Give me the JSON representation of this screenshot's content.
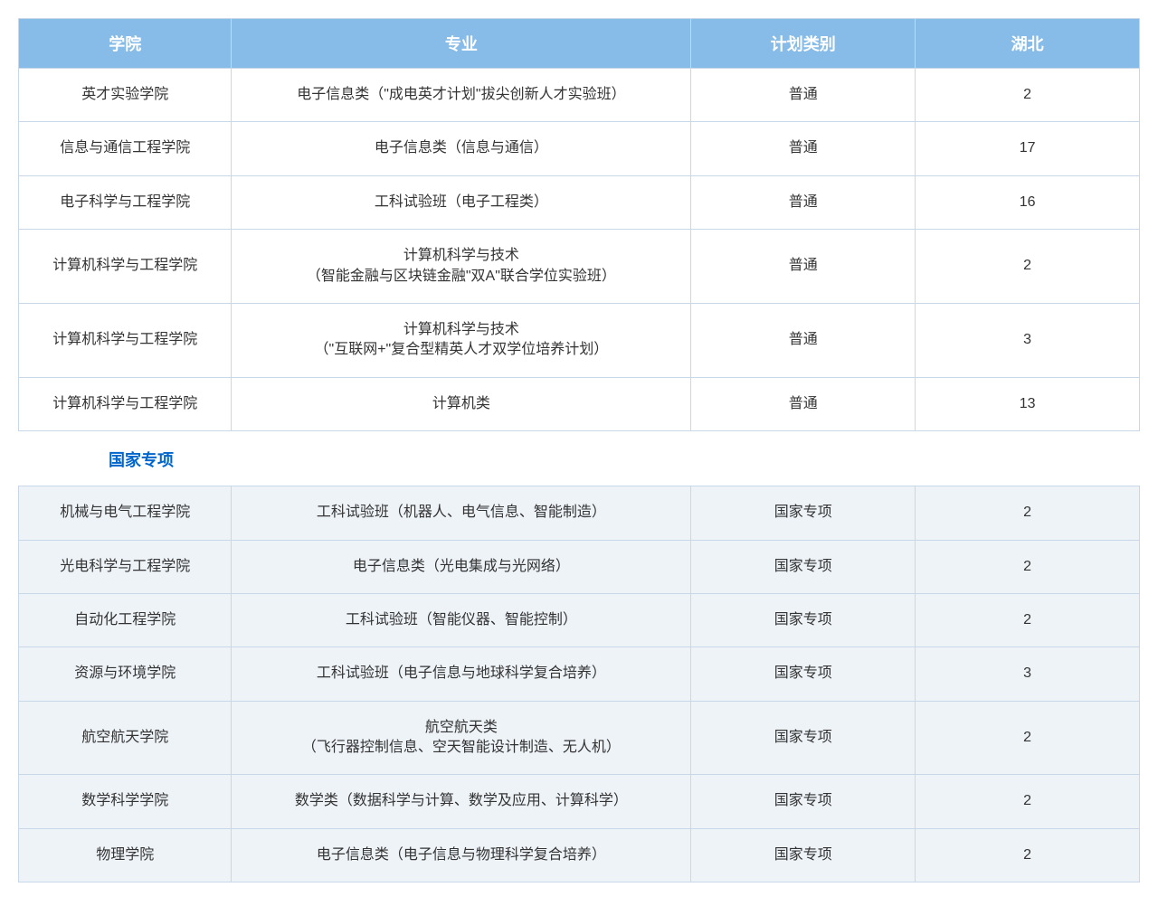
{
  "header": {
    "col1": "学院",
    "col2": "专业",
    "col3": "计划类别",
    "col4": "湖北"
  },
  "section_title": "国家专项",
  "table1": {
    "columns": [
      "学院",
      "专业",
      "计划类别",
      "湖北"
    ],
    "rows": [
      {
        "college": "英才实验学院",
        "major": "电子信息类（\"成电英才计划\"拔尖创新人才实验班）",
        "category": "普通",
        "count": "2"
      },
      {
        "college": "信息与通信工程学院",
        "major": "电子信息类（信息与通信）",
        "category": "普通",
        "count": "17"
      },
      {
        "college": "电子科学与工程学院",
        "major": "工科试验班（电子工程类）",
        "category": "普通",
        "count": "16"
      },
      {
        "college": "计算机科学与工程学院",
        "major": "计算机科学与技术\n（智能金融与区块链金融\"双A\"联合学位实验班）",
        "category": "普通",
        "count": "2"
      },
      {
        "college": "计算机科学与工程学院",
        "major": "计算机科学与技术\n（\"互联网+\"复合型精英人才双学位培养计划）",
        "category": "普通",
        "count": "3"
      },
      {
        "college": "计算机科学与工程学院",
        "major": "计算机类",
        "category": "普通",
        "count": "13"
      }
    ],
    "header_bg": "#87bce8",
    "header_color": "#ffffff",
    "row_bg": "#ffffff",
    "border_color": "#c8d8e8"
  },
  "table2": {
    "rows": [
      {
        "college": "机械与电气工程学院",
        "major": "工科试验班（机器人、电气信息、智能制造）",
        "category": "国家专项",
        "count": "2"
      },
      {
        "college": "光电科学与工程学院",
        "major": "电子信息类（光电集成与光网络）",
        "category": "国家专项",
        "count": "2"
      },
      {
        "college": "自动化工程学院",
        "major": "工科试验班（智能仪器、智能控制）",
        "category": "国家专项",
        "count": "2"
      },
      {
        "college": "资源与环境学院",
        "major": "工科试验班（电子信息与地球科学复合培养）",
        "category": "国家专项",
        "count": "3"
      },
      {
        "college": "航空航天学院",
        "major": "航空航天类\n（飞行器控制信息、空天智能设计制造、无人机）",
        "category": "国家专项",
        "count": "2"
      },
      {
        "college": "数学科学学院",
        "major": "数学类（数据科学与计算、数学及应用、计算科学）",
        "category": "国家专项",
        "count": "2"
      },
      {
        "college": "物理学院",
        "major": "电子信息类（电子信息与物理科学复合培养）",
        "category": "国家专项",
        "count": "2"
      }
    ],
    "row_bg": "#eef3f8",
    "border_color": "#c8d8e8"
  },
  "styling": {
    "font_family": "Microsoft YaHei",
    "header_fontsize": 18,
    "cell_fontsize": 16,
    "section_title_color": "#0066cc",
    "section_title_fontsize": 18,
    "text_color": "#333333",
    "column_widths": {
      "college": "19%",
      "major": "41%",
      "category": "20%",
      "count": "20%"
    }
  }
}
